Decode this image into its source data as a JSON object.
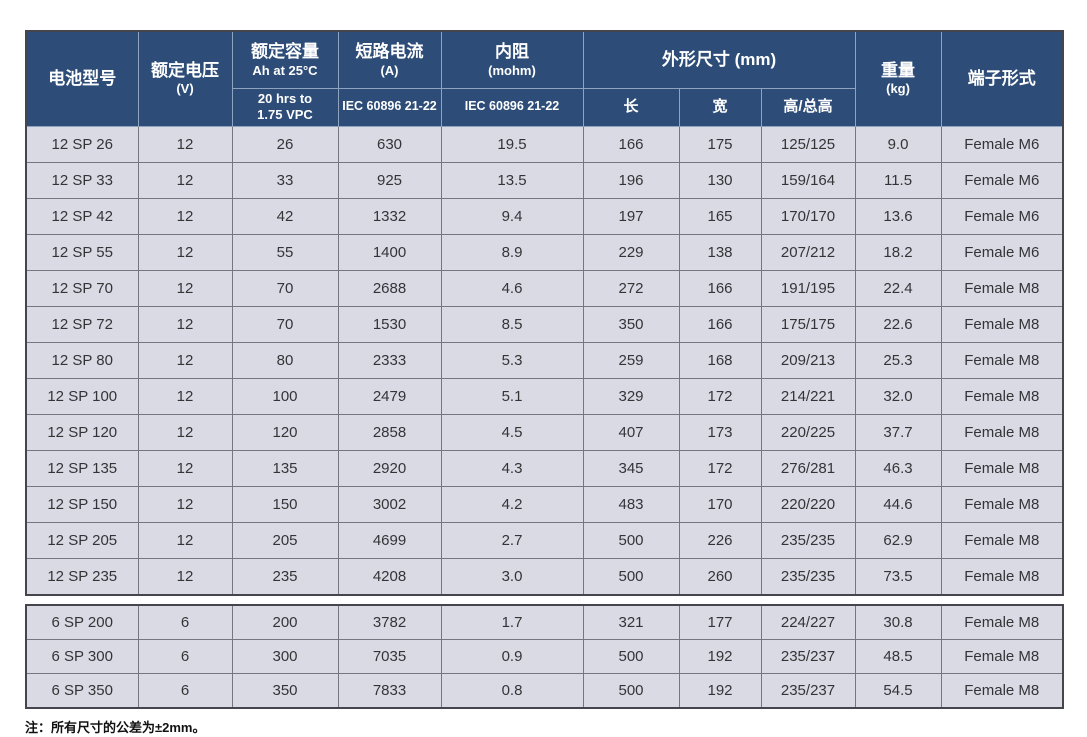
{
  "colors": {
    "header_bg": "#2d4d78",
    "header_grid": "#8ea3c0",
    "row_bg": "#d9dae3",
    "grid_line": "#75767f",
    "outer_border": "#44454d"
  },
  "table": {
    "fields": [
      "model",
      "voltage",
      "capacity",
      "short_circuit",
      "resistance",
      "length",
      "width",
      "height",
      "weight",
      "terminal"
    ],
    "header": {
      "col_model": "电池型号",
      "col_voltage": [
        "额定电压",
        "(V)"
      ],
      "col_capacity": [
        "额定容量",
        "Ah at 25°C"
      ],
      "col_capacity_sub": [
        "20 hrs to",
        "1.75 VPC"
      ],
      "col_short_circuit": [
        "短路电流",
        "(A)"
      ],
      "col_short_circuit_sub": "IEC 60896 21-22",
      "col_resistance": [
        "内阻",
        "(mohm)"
      ],
      "col_resistance_sub": "IEC 60896 21-22",
      "col_dimensions": "外形尺寸 (mm)",
      "col_dim_length": "长",
      "col_dim_width": "宽",
      "col_dim_height": "高/总高",
      "col_weight": [
        "重量",
        "(kg)"
      ],
      "col_terminal": "端子形式"
    },
    "rows_12v": [
      {
        "model": "12 SP 26",
        "voltage": "12",
        "capacity": "26",
        "short_circuit": "630",
        "resistance": "19.5",
        "length": "166",
        "width": "175",
        "height": "125/125",
        "weight": "9.0",
        "terminal": "Female M6"
      },
      {
        "model": "12 SP 33",
        "voltage": "12",
        "capacity": "33",
        "short_circuit": "925",
        "resistance": "13.5",
        "length": "196",
        "width": "130",
        "height": "159/164",
        "weight": "11.5",
        "terminal": "Female M6"
      },
      {
        "model": "12 SP 42",
        "voltage": "12",
        "capacity": "42",
        "short_circuit": "1332",
        "resistance": "9.4",
        "length": "197",
        "width": "165",
        "height": "170/170",
        "weight": "13.6",
        "terminal": "Female M6"
      },
      {
        "model": "12 SP 55",
        "voltage": "12",
        "capacity": "55",
        "short_circuit": "1400",
        "resistance": "8.9",
        "length": "229",
        "width": "138",
        "height": "207/212",
        "weight": "18.2",
        "terminal": "Female M6"
      },
      {
        "model": "12 SP 70",
        "voltage": "12",
        "capacity": "70",
        "short_circuit": "2688",
        "resistance": "4.6",
        "length": "272",
        "width": "166",
        "height": "191/195",
        "weight": "22.4",
        "terminal": "Female M8"
      },
      {
        "model": "12 SP 72",
        "voltage": "12",
        "capacity": "70",
        "short_circuit": "1530",
        "resistance": "8.5",
        "length": "350",
        "width": "166",
        "height": "175/175",
        "weight": "22.6",
        "terminal": "Female M8"
      },
      {
        "model": "12 SP 80",
        "voltage": "12",
        "capacity": "80",
        "short_circuit": "2333",
        "resistance": "5.3",
        "length": "259",
        "width": "168",
        "height": "209/213",
        "weight": "25.3",
        "terminal": "Female M8"
      },
      {
        "model": "12 SP 100",
        "voltage": "12",
        "capacity": "100",
        "short_circuit": "2479",
        "resistance": "5.1",
        "length": "329",
        "width": "172",
        "height": "214/221",
        "weight": "32.0",
        "terminal": "Female M8"
      },
      {
        "model": "12 SP 120",
        "voltage": "12",
        "capacity": "120",
        "short_circuit": "2858",
        "resistance": "4.5",
        "length": "407",
        "width": "173",
        "height": "220/225",
        "weight": "37.7",
        "terminal": "Female M8"
      },
      {
        "model": "12 SP 135",
        "voltage": "12",
        "capacity": "135",
        "short_circuit": "2920",
        "resistance": "4.3",
        "length": "345",
        "width": "172",
        "height": "276/281",
        "weight": "46.3",
        "terminal": "Female M8"
      },
      {
        "model": "12 SP 150",
        "voltage": "12",
        "capacity": "150",
        "short_circuit": "3002",
        "resistance": "4.2",
        "length": "483",
        "width": "170",
        "height": "220/220",
        "weight": "44.6",
        "terminal": "Female M8"
      },
      {
        "model": "12 SP 205",
        "voltage": "12",
        "capacity": "205",
        "short_circuit": "4699",
        "resistance": "2.7",
        "length": "500",
        "width": "226",
        "height": "235/235",
        "weight": "62.9",
        "terminal": "Female M8"
      },
      {
        "model": "12 SP 235",
        "voltage": "12",
        "capacity": "235",
        "short_circuit": "4208",
        "resistance": "3.0",
        "length": "500",
        "width": "260",
        "height": "235/235",
        "weight": "73.5",
        "terminal": "Female M8"
      }
    ],
    "rows_6v": [
      {
        "model": "6 SP 200",
        "voltage": "6",
        "capacity": "200",
        "short_circuit": "3782",
        "resistance": "1.7",
        "length": "321",
        "width": "177",
        "height": "224/227",
        "weight": "30.8",
        "terminal": "Female M8"
      },
      {
        "model": "6 SP 300",
        "voltage": "6",
        "capacity": "300",
        "short_circuit": "7035",
        "resistance": "0.9",
        "length": "500",
        "width": "192",
        "height": "235/237",
        "weight": "48.5",
        "terminal": "Female M8"
      },
      {
        "model": "6 SP 350",
        "voltage": "6",
        "capacity": "350",
        "short_circuit": "7833",
        "resistance": "0.8",
        "length": "500",
        "width": "192",
        "height": "235/237",
        "weight": "54.5",
        "terminal": "Female M8"
      }
    ],
    "footnote": "注：所有尺寸的公差为±2mm。"
  }
}
